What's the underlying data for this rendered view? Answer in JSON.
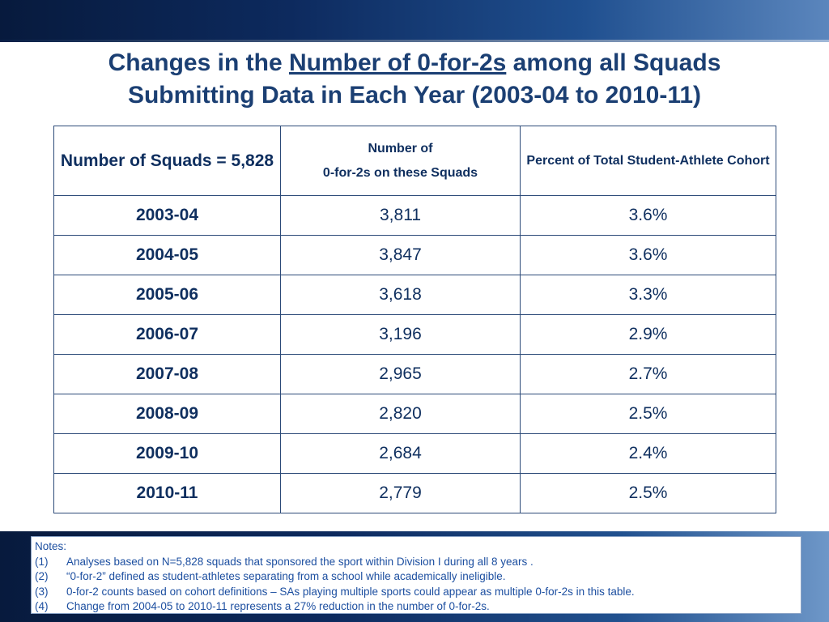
{
  "title": {
    "before": "Changes in the ",
    "underlined": "Number of 0-for-2s",
    "after": " among all Squads",
    "line2": "Submitting Data in Each Year (2003-04 to 2010-11)"
  },
  "table": {
    "headers": {
      "col1": "Number of Squads = 5,828",
      "col2_line1": "Number of",
      "col2_line2": "0-for-2s on these Squads",
      "col3": "Percent of Total Student-Athlete Cohort"
    },
    "rows": [
      {
        "year": "2003-04",
        "count": "3,811",
        "percent": "3.6%"
      },
      {
        "year": "2004-05",
        "count": "3,847",
        "percent": "3.6%"
      },
      {
        "year": "2005-06",
        "count": "3,618",
        "percent": "3.3%"
      },
      {
        "year": "2006-07",
        "count": "3,196",
        "percent": "2.9%"
      },
      {
        "year": "2007-08",
        "count": "2,965",
        "percent": "2.7%"
      },
      {
        "year": "2008-09",
        "count": "2,820",
        "percent": "2.5%"
      },
      {
        "year": "2009-10",
        "count": "2,684",
        "percent": "2.4%"
      },
      {
        "year": "2010-11",
        "count": "2,779",
        "percent": "2.5%"
      }
    ]
  },
  "notes": {
    "heading": "Notes:",
    "items": [
      {
        "num": "(1)",
        "text": "Analyses based on N=5,828 squads that sponsored the sport within Division I during all 8 years ."
      },
      {
        "num": "(2)",
        "text": "“0-for-2” defined as student-athletes separating from a school while academically ineligible."
      },
      {
        "num": "(3)",
        "text": "0-for-2 counts based on cohort definitions – SAs playing multiple sports could appear as multiple 0-for-2s in this table."
      },
      {
        "num": "(4)",
        "text": "Change from 2004-05 to 2010-11 represents a 27% reduction in the number of 0-for-2s."
      }
    ]
  },
  "colors": {
    "title": "#1b3f73",
    "table_text": "#0f2f5f",
    "notes_text": "#1d4fa0",
    "band_dark": "#071a3d"
  }
}
